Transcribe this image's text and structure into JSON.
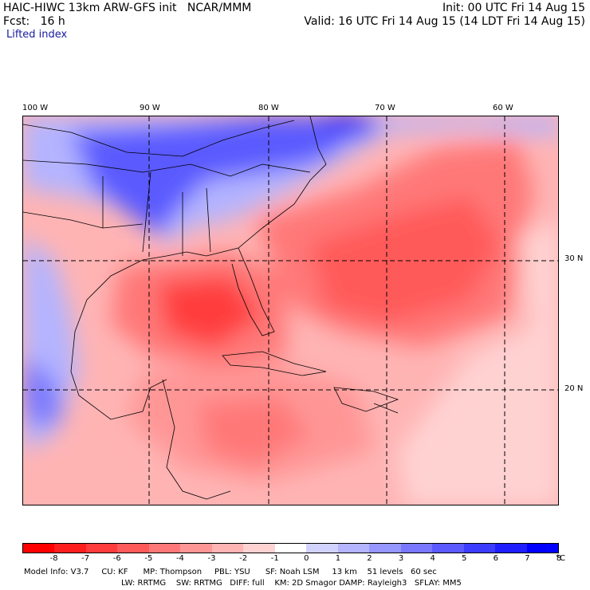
{
  "header": {
    "title": "HAIC-HIWC 13km ARW-GFS init   NCAR/MMM",
    "init": "Init: 00 UTC Fri 14 Aug 15",
    "fcst": "Fcst:   16 h",
    "valid": "Valid: 16 UTC Fri 14 Aug 15 (14 LDT Fri 14 Aug 15)",
    "field": "Lifted index"
  },
  "map": {
    "lon_labels": [
      "100 W",
      "90 W",
      "80 W",
      "70 W",
      "60 W"
    ],
    "lat_labels": [
      "30 N",
      "20 N"
    ]
  },
  "colorbar": {
    "colors": [
      "#ff0000",
      "#ff1e1e",
      "#ff3c3c",
      "#ff5a5a",
      "#ff7878",
      "#ff9696",
      "#ffb4b4",
      "#ffd2d2",
      "#ffffff",
      "#d2d2ff",
      "#b4b4ff",
      "#9696ff",
      "#7878ff",
      "#5a5aff",
      "#3c3cff",
      "#1e1eff",
      "#0000ff"
    ],
    "labels": [
      "-8",
      "-7",
      "-6",
      "-5",
      "-4",
      "-3",
      "-2",
      "-1",
      "0",
      "1",
      "2",
      "3",
      "4",
      "5",
      "6",
      "7",
      "8"
    ],
    "unit": "°C"
  },
  "model_info": {
    "line1": "Model Info: V3.7     CU: KF      MP: Thompson     PBL: YSU      SF: Noah LSM     13 km    51 levels   60 sec",
    "line2": "LW: RRTMG    SW: RRTMG   DIFF: full    KM: 2D Smagor DAMP: Rayleigh3   SFLAY: MM5"
  }
}
